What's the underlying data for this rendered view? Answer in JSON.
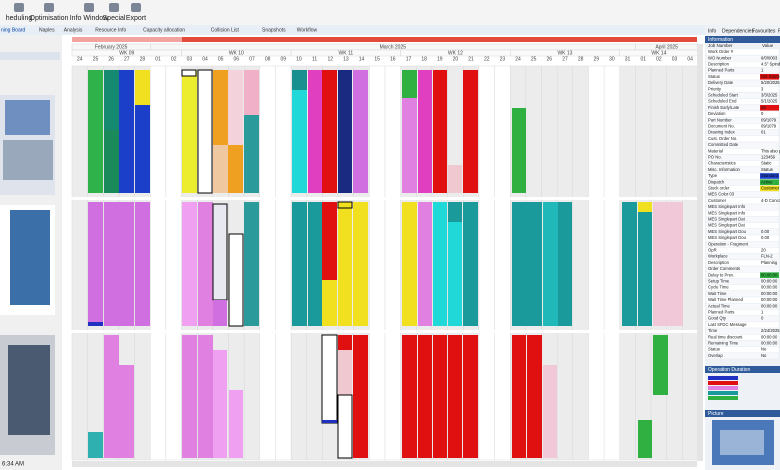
{
  "toolbar": {
    "buttons": [
      "heduling",
      "Optimisation",
      "Info Window",
      "Special",
      "Export"
    ]
  },
  "tabs": [
    "ning Board",
    "Naples",
    "Analysis",
    "Resource Info",
    "Capacity allocation",
    "Collision List",
    "Snapshots",
    "Workflow"
  ],
  "timeline": {
    "months": [
      "February 2025",
      "March 2025",
      "April 2025"
    ],
    "weeks": [
      "WK 09",
      "WK 10",
      "WK 11",
      "WK 12",
      "WK 13",
      "WK 14"
    ],
    "days": [
      "24",
      "25",
      "26",
      "27",
      "28",
      "01",
      "02",
      "03",
      "04",
      "05",
      "06",
      "07",
      "08",
      "09",
      "10",
      "11",
      "12",
      "13",
      "14",
      "15",
      "16",
      "17",
      "18",
      "19",
      "20",
      "21",
      "22",
      "23",
      "24",
      "25",
      "26",
      "27",
      "28",
      "29",
      "30",
      "31",
      "01",
      "02",
      "03",
      "04"
    ]
  },
  "left_panel": {
    "status_time": "6:34 AM"
  },
  "info_panel": {
    "tabs": [
      "Info",
      "Dependencies",
      "Favourites",
      "Pro"
    ],
    "title": "Information",
    "columns": [
      "Job Number",
      "Value"
    ],
    "rows": [
      [
        "Work Order #"
      ],
      [
        "WO Number",
        "6/0/0003"
      ],
      [
        "Description",
        "4.5\" Spindle"
      ],
      [
        "Planned Parts",
        "1"
      ],
      [
        "Status",
        "Not Started"
      ],
      [
        "Delivery Date",
        "5/20/2025"
      ],
      [
        "Priority",
        "3"
      ],
      [
        "Scheduled Start",
        "3/3/2025"
      ],
      [
        "Scheduled End",
        "5/1/2025"
      ],
      [
        "Finish Early/Late",
        "49"
      ],
      [
        "Deviation",
        "0"
      ],
      [
        "Part Number",
        "09/1079"
      ],
      [
        "Document No.",
        "09/1079"
      ],
      [
        "Drawing Index",
        "01"
      ],
      [
        "Cust. Order No."
      ],
      [
        "Committed Date"
      ],
      [
        "Material",
        "This also p"
      ],
      [
        "PO No.",
        "123456"
      ],
      [
        "Characteristics",
        "Static"
      ],
      [
        "Misc. Information",
        "Status"
      ],
      [
        "Type",
        "Standard"
      ],
      [
        "Dispatch",
        "Active"
      ],
      [
        "Stock order",
        "Customer"
      ],
      [
        "MES Color 03"
      ],
      [
        "Customer",
        "4-D Conco"
      ],
      [
        "MES Singlepart Info"
      ],
      [
        "MES Singlepart Info"
      ],
      [
        "MES Singlepart Dat"
      ],
      [
        "MES Singlepart Dat"
      ],
      [
        "MES Singlepart Dou",
        "0.00"
      ],
      [
        "MES Singlepart Dou",
        "0.00"
      ],
      [
        "Operation - Fragment"
      ],
      [
        "OpR",
        "20"
      ],
      [
        "Workplace",
        "FLN-2"
      ],
      [
        "Description",
        "Planning"
      ],
      [
        "Order Comments"
      ],
      [
        "Delay to Prev.",
        "00:00:00"
      ],
      [
        "Setup Time",
        "00:00:00"
      ],
      [
        "Cycle Time",
        "00:00:00"
      ],
      [
        "Wait Time",
        "00:00:00"
      ],
      [
        "Wait Time Planned",
        "00:00:00"
      ],
      [
        "Actual Time",
        "00:00:00"
      ],
      [
        "Planned Parts",
        "1"
      ],
      [
        "Good Qty",
        "0"
      ],
      [
        "Last SFDC Message"
      ],
      [
        "Time",
        "2/24/2025"
      ],
      [
        "Real time discount",
        "00:00:00"
      ],
      [
        "Remaining Time",
        "00:00:00"
      ],
      [
        "Status",
        "No"
      ],
      [
        "Overlap",
        "No"
      ]
    ],
    "legend_title": "Operation Duration",
    "picture_title": "Picture"
  }
}
